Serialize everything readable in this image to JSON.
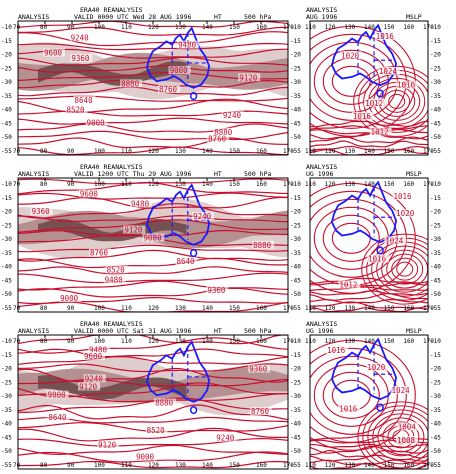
{
  "colors": {
    "contour": "#c8102e",
    "coast": "#1a1aff",
    "band_light": "#dcc7c7",
    "band_mid": "#b08a8a",
    "band_dark": "#6e4a4a",
    "frame": "#000000"
  },
  "lon_ticks_left": [
    "70",
    "80",
    "90",
    "100",
    "110",
    "120",
    "130",
    "140",
    "150",
    "160",
    "170"
  ],
  "lat_ticks_left": [
    "-10",
    "-15",
    "-20",
    "-25",
    "-30",
    "-35",
    "-40",
    "-45",
    "-50",
    "-55"
  ],
  "lat_ticks_right": [
    "-10",
    "-15",
    "-20",
    "-25",
    "-30",
    "-35",
    "-40",
    "-45",
    "-50",
    "-55"
  ],
  "lon_ticks_right": [
    "110",
    "120",
    "130",
    "140",
    "150",
    "160",
    "170"
  ],
  "rows": [
    {
      "dataset_title": "ERA40 REANALYSIS",
      "left": {
        "label": "ANALYSIS",
        "valid": "VALID 0000 UTC  Wed 28 AUG 1996",
        "field": "HT",
        "level": "500 hPa",
        "contour_labels": [
          "9240",
          "9480",
          "9600",
          "9360",
          "9000",
          "9120",
          "8880",
          "8760",
          "8640",
          "8520",
          "9240",
          "9000",
          "8880",
          "8760"
        ]
      },
      "right": {
        "label": "ANALYSIS",
        "valid": "AUG 1996",
        "field": "MSLP",
        "contour_labels": [
          "1016",
          "1020",
          "1024",
          "1016",
          "1012",
          "1016",
          "1012"
        ]
      }
    },
    {
      "dataset_title": "ERA40 REANALYSIS",
      "left": {
        "label": "ANALYSIS",
        "valid": "VALID 1200 UTC  Thu 29 AUG 1996",
        "field": "HT",
        "level": "500 hPa",
        "contour_labels": [
          "9600",
          "9480",
          "9360",
          "9240",
          "9120",
          "9000",
          "8880",
          "8760",
          "8640",
          "8520",
          "9480",
          "9360",
          "9000"
        ]
      },
      "right": {
        "label": "ANALYSIS",
        "valid": "UG 1996",
        "field": "MSLP",
        "contour_labels": [
          "1016",
          "1020",
          "1024",
          "1016",
          "1012"
        ]
      }
    },
    {
      "dataset_title": "ERA40 REANALYSIS",
      "left": {
        "label": "ANALYSIS",
        "valid": "VALID 0000 UTC  Sat 31 AUG 1996",
        "field": "HT",
        "level": "500 hPa",
        "contour_labels": [
          "9480",
          "9600",
          "9360",
          "9240",
          "9120",
          "9000",
          "8880",
          "8760",
          "8640",
          "8520",
          "9240",
          "9120",
          "9000"
        ]
      },
      "right": {
        "label": "ANALYSIS",
        "valid": "UG 1996",
        "field": "MSLP",
        "contour_labels": [
          "1016",
          "1020",
          "1024",
          "1016",
          "1004",
          "1008"
        ]
      }
    }
  ]
}
